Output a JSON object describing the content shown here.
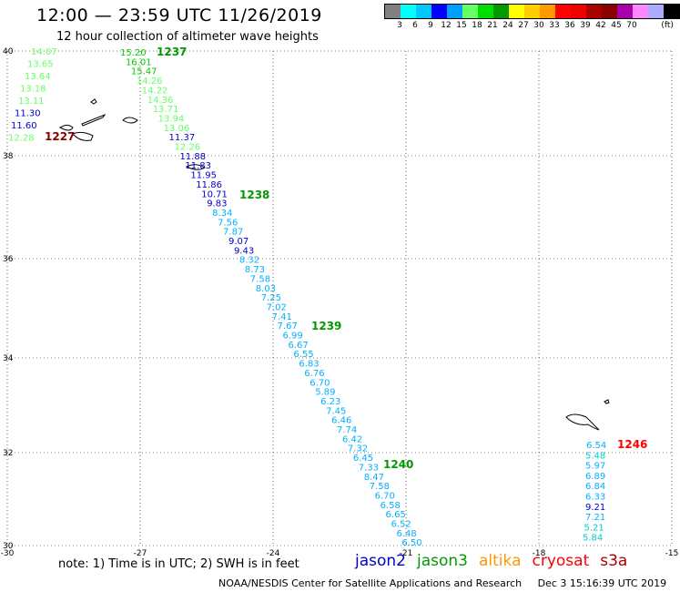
{
  "header": {
    "title": "12:00 — 23:59 UTC 11/26/2019",
    "subtitle": "12 hour collection of altimeter wave heights"
  },
  "legend": {
    "unit_label": "(ft)",
    "colors": [
      "#808080",
      "#00ffff",
      "#00c8ff",
      "#0000ff",
      "#00a0ff",
      "#66ff66",
      "#00dd00",
      "#009900",
      "#ffff00",
      "#ffcc00",
      "#ff9900",
      "#ff0000",
      "#ee0000",
      "#aa0000",
      "#880000",
      "#aa00aa",
      "#ff88ff",
      "#aaaaff",
      "#000000"
    ],
    "labels": [
      "3",
      "6",
      "9",
      "12",
      "15",
      "18",
      "21",
      "24",
      "27",
      "30",
      "33",
      "36",
      "39",
      "42",
      "45",
      "70"
    ]
  },
  "axes": {
    "x_ticks": [
      "-30",
      "-27",
      "-24",
      "-21",
      "-18",
      "-15"
    ],
    "y_ticks": [
      "40",
      "38",
      "36",
      "34",
      "32",
      "30"
    ]
  },
  "passes": [
    {
      "id": "1237",
      "color": "#009900"
    },
    {
      "id": "1227",
      "color": "#880000"
    },
    {
      "id": "1238",
      "color": "#009900"
    },
    {
      "id": "1239",
      "color": "#009900"
    },
    {
      "id": "1240",
      "color": "#009900"
    },
    {
      "id": "1246",
      "color": "#ff0000"
    }
  ],
  "tracks": [
    {
      "name": "1227",
      "lon": [
        -29.8,
        -29.8
      ],
      "lat": [
        39.0,
        39.0
      ],
      "points": [
        {
          "v": "14.07",
          "c": "#66ff66"
        },
        {
          "v": "13.65",
          "c": "#66ff66"
        },
        {
          "v": "13.64",
          "c": "#66ff66"
        },
        {
          "v": "13.18",
          "c": "#66ff66"
        },
        {
          "v": "13.11",
          "c": "#66ff66"
        },
        {
          "v": "11.30",
          "c": "#0000cc"
        },
        {
          "v": "11.60",
          "c": "#0000cc"
        },
        {
          "v": "12.28",
          "c": "#66ff66"
        }
      ]
    },
    {
      "name": "1237-1240",
      "points": [
        {
          "v": "15.20",
          "c": "#00cc00"
        },
        {
          "v": "16.01",
          "c": "#00cc00"
        },
        {
          "v": "15.47",
          "c": "#00cc00"
        },
        {
          "v": "14.26",
          "c": "#66ff66"
        },
        {
          "v": "14.22",
          "c": "#66ff66"
        },
        {
          "v": "14.36",
          "c": "#66ff66"
        },
        {
          "v": "13.71",
          "c": "#66ff66"
        },
        {
          "v": "13.94",
          "c": "#66ff66"
        },
        {
          "v": "13.06",
          "c": "#66ff66"
        },
        {
          "v": "11.37",
          "c": "#0000cc"
        },
        {
          "v": "12.26",
          "c": "#66ff66"
        },
        {
          "v": "11.88",
          "c": "#0000cc"
        },
        {
          "v": "11.83",
          "c": "#0000cc"
        },
        {
          "v": "11.95",
          "c": "#0000cc"
        },
        {
          "v": "11.86",
          "c": "#0000cc"
        },
        {
          "v": "10.71",
          "c": "#0000cc"
        },
        {
          "v": "9.83",
          "c": "#0000cc"
        },
        {
          "v": "8.34",
          "c": "#00b0ff"
        },
        {
          "v": "7.56",
          "c": "#00b0ff"
        },
        {
          "v": "7.87",
          "c": "#00b0ff"
        },
        {
          "v": "9.07",
          "c": "#0000cc"
        },
        {
          "v": "9.43",
          "c": "#0000cc"
        },
        {
          "v": "8.32",
          "c": "#00b0ff"
        },
        {
          "v": "8.73",
          "c": "#00b0ff"
        },
        {
          "v": "7.58",
          "c": "#00b0ff"
        },
        {
          "v": "8.03",
          "c": "#00b0ff"
        },
        {
          "v": "7.25",
          "c": "#00b0ff"
        },
        {
          "v": "7.02",
          "c": "#00b0ff"
        },
        {
          "v": "7.41",
          "c": "#00b0ff"
        },
        {
          "v": "7.67",
          "c": "#00b0ff"
        },
        {
          "v": "6.99",
          "c": "#00b0ff"
        },
        {
          "v": "6.67",
          "c": "#00b0ff"
        },
        {
          "v": "6.55",
          "c": "#00b0ff"
        },
        {
          "v": "6.83",
          "c": "#00b0ff"
        },
        {
          "v": "6.76",
          "c": "#00b0ff"
        },
        {
          "v": "6.70",
          "c": "#00b0ff"
        },
        {
          "v": "5.89",
          "c": "#00b0ff"
        },
        {
          "v": "6.23",
          "c": "#00b0ff"
        },
        {
          "v": "7.45",
          "c": "#00b0ff"
        },
        {
          "v": "6.46",
          "c": "#00b0ff"
        },
        {
          "v": "7.74",
          "c": "#00b0ff"
        },
        {
          "v": "6.42",
          "c": "#00b0ff"
        },
        {
          "v": "7.32",
          "c": "#00b0ff"
        },
        {
          "v": "6.45",
          "c": "#00b0ff"
        },
        {
          "v": "7.33",
          "c": "#00b0ff"
        },
        {
          "v": "8.47",
          "c": "#00b0ff"
        },
        {
          "v": "7.58",
          "c": "#00b0ff"
        },
        {
          "v": "6.70",
          "c": "#00b0ff"
        },
        {
          "v": "6.58",
          "c": "#00b0ff"
        },
        {
          "v": "6.65",
          "c": "#00b0ff"
        },
        {
          "v": "6.52",
          "c": "#00b0ff"
        },
        {
          "v": "6.48",
          "c": "#00b0ff"
        },
        {
          "v": "6.50",
          "c": "#00b0ff"
        }
      ]
    },
    {
      "name": "1246",
      "points": [
        {
          "v": "6.54",
          "c": "#00b0ff"
        },
        {
          "v": "5.48",
          "c": "#00cccc"
        },
        {
          "v": "5.97",
          "c": "#00b0ff"
        },
        {
          "v": "6.89",
          "c": "#00b0ff"
        },
        {
          "v": "6.84",
          "c": "#00b0ff"
        },
        {
          "v": "6.33",
          "c": "#00b0ff"
        },
        {
          "v": "9.21",
          "c": "#0000cc"
        },
        {
          "v": "7.21",
          "c": "#00b0ff"
        },
        {
          "v": "5.21",
          "c": "#00cccc"
        },
        {
          "v": "5.84",
          "c": "#00cccc"
        }
      ]
    }
  ],
  "footer": {
    "note": "note: 1) Time is in UTC; 2) SWH is in feet",
    "satellites": [
      {
        "name": "jason2",
        "color": "#0000cc"
      },
      {
        "name": "jason3",
        "color": "#009900"
      },
      {
        "name": "altika",
        "color": "#ff9900"
      },
      {
        "name": "cryosat",
        "color": "#ff0000"
      },
      {
        "name": "s3a",
        "color": "#aa0000"
      }
    ],
    "credit": "NOAA/NESDIS Center for Satellite Applications and Research",
    "timestamp": "Dec  3 15:16:39 UTC 2019"
  }
}
